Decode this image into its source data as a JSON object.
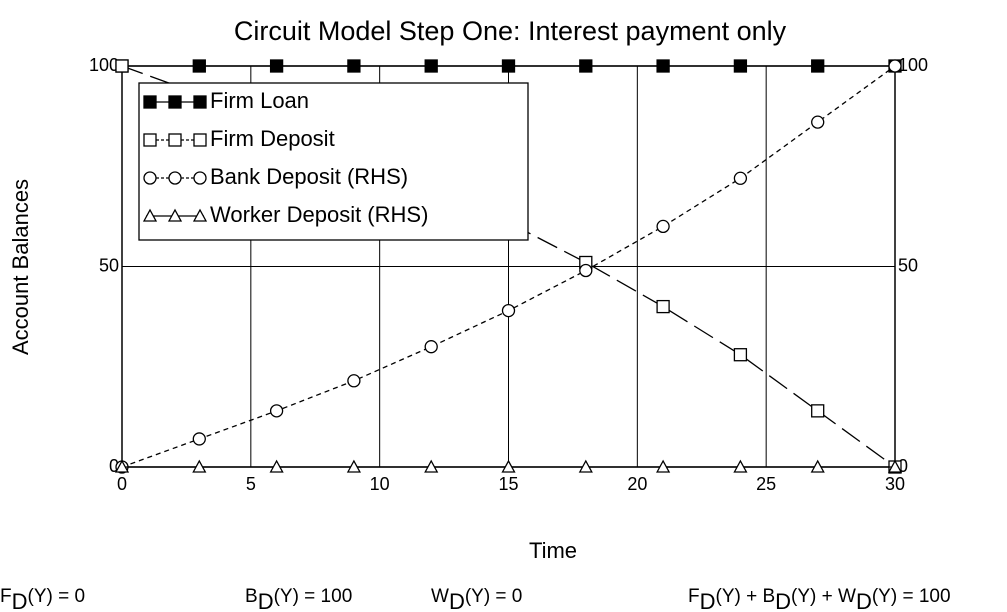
{
  "chart_data": {
    "type": "line",
    "title": "Circuit Model Step One: Interest payment only",
    "xlabel": "Time",
    "ylabel": "Account Balances",
    "x": [
      0,
      3,
      6,
      9,
      12,
      15,
      18,
      21,
      24,
      27,
      30
    ],
    "series": [
      {
        "name": "Firm Loan",
        "color": "#000000",
        "marker": "filled-square",
        "dash": "none",
        "values": [
          100,
          100,
          100,
          100,
          100,
          100,
          100,
          100,
          100,
          100,
          100
        ]
      },
      {
        "name": "Firm Deposit",
        "color": "#000000",
        "marker": "square",
        "dash": "22 8",
        "values": [
          100,
          93,
          86,
          78.5,
          70,
          61,
          51,
          40,
          28,
          14,
          0
        ]
      },
      {
        "name": "Bank Deposit (RHS)",
        "color": "#000000",
        "marker": "circle",
        "dash": "5 4",
        "axis": "y2",
        "values": [
          0,
          7,
          14,
          21.5,
          30,
          39,
          49,
          60,
          72,
          86,
          100
        ]
      },
      {
        "name": "Worker Deposit (RHS)",
        "color": "#000000",
        "marker": "triangle",
        "dash": "none",
        "axis": "y2",
        "values": [
          0,
          0,
          0,
          0,
          0,
          0,
          0,
          0,
          0,
          0,
          0
        ]
      }
    ],
    "xlim": [
      0,
      30
    ],
    "xticks": [
      0,
      5,
      10,
      15,
      20,
      25,
      30
    ],
    "ylim": [
      0,
      100
    ],
    "yticks": [
      0,
      50,
      100
    ],
    "y2lim": [
      0,
      100
    ],
    "y2ticks": [
      0,
      50,
      100
    ],
    "grid": true,
    "legend": "upper left",
    "annotations": [
      [
        "F",
        "D",
        "(Y) = 0"
      ],
      [
        "B",
        "D",
        "(Y) = 100"
      ],
      [
        "W",
        "D",
        "(Y) = 0"
      ],
      [
        "F",
        "D",
        "(Y) + B",
        "D",
        "(Y) + W",
        "D",
        "(Y) = 100"
      ]
    ]
  }
}
